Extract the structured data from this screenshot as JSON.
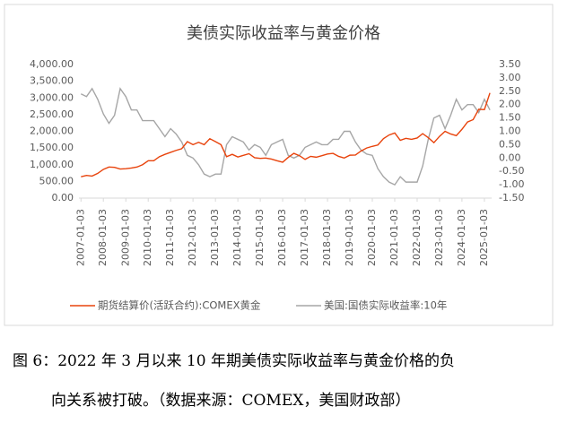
{
  "chart_data": {
    "type": "line",
    "title": "美债实际收益率与黄金价格",
    "x": [
      "2007-01-03",
      "2007-04-03",
      "2007-07-03",
      "2007-10-03",
      "2008-01-03",
      "2008-04-03",
      "2008-07-03",
      "2008-10-03",
      "2009-01-03",
      "2009-04-03",
      "2009-07-03",
      "2009-10-03",
      "2010-01-03",
      "2010-04-03",
      "2010-07-03",
      "2010-10-03",
      "2011-01-03",
      "2011-04-03",
      "2011-07-03",
      "2011-10-03",
      "2012-01-03",
      "2012-04-03",
      "2012-07-03",
      "2012-10-03",
      "2013-01-03",
      "2013-04-03",
      "2013-07-03",
      "2013-10-03",
      "2014-01-03",
      "2014-04-03",
      "2014-07-03",
      "2014-10-03",
      "2015-01-03",
      "2015-04-03",
      "2015-07-03",
      "2015-10-03",
      "2016-01-03",
      "2016-04-03",
      "2016-07-03",
      "2016-10-03",
      "2017-01-03",
      "2017-04-03",
      "2017-07-03",
      "2017-10-03",
      "2018-01-03",
      "2018-04-03",
      "2018-07-03",
      "2018-10-03",
      "2019-01-03",
      "2019-04-03",
      "2019-07-03",
      "2019-10-03",
      "2020-01-03",
      "2020-04-03",
      "2020-07-03",
      "2020-10-03",
      "2021-01-03",
      "2021-04-03",
      "2021-07-03",
      "2021-10-03",
      "2022-01-03",
      "2022-04-03",
      "2022-07-03",
      "2022-10-03",
      "2023-01-03",
      "2023-04-03",
      "2023-07-03",
      "2023-10-03",
      "2024-01-03",
      "2024-04-03",
      "2024-07-03",
      "2024-10-03",
      "2025-01-03",
      "2025-04-03"
    ],
    "series": [
      {
        "name": "期货结算价(活跃合约):COMEX黄金",
        "color": "#e8430c",
        "values": [
          640,
          680,
          660,
          740,
          860,
          930,
          920,
          870,
          880,
          900,
          930,
          1000,
          1120,
          1120,
          1240,
          1310,
          1370,
          1430,
          1480,
          1690,
          1600,
          1670,
          1600,
          1780,
          1690,
          1600,
          1240,
          1310,
          1230,
          1280,
          1330,
          1210,
          1190,
          1200,
          1170,
          1120,
          1075,
          1220,
          1340,
          1270,
          1160,
          1250,
          1225,
          1270,
          1320,
          1340,
          1250,
          1200,
          1285,
          1290,
          1410,
          1500,
          1550,
          1590,
          1780,
          1890,
          1950,
          1730,
          1790,
          1760,
          1800,
          1930,
          1810,
          1660,
          1850,
          2000,
          1920,
          1870,
          2060,
          2280,
          2350,
          2660,
          2650,
          3150
        ]
      },
      {
        "name": "美国:国债实际收益率:10年",
        "color": "#a6a6a6",
        "axis": "y2",
        "values": [
          2.4,
          2.3,
          2.6,
          2.2,
          1.65,
          1.3,
          1.6,
          2.6,
          2.3,
          1.8,
          1.8,
          1.4,
          1.4,
          1.4,
          1.1,
          0.8,
          1.1,
          0.9,
          0.6,
          0.1,
          0.0,
          -0.25,
          -0.6,
          -0.7,
          -0.6,
          -0.6,
          0.5,
          0.8,
          0.7,
          0.6,
          0.3,
          0.5,
          0.4,
          0.1,
          0.5,
          0.6,
          0.7,
          0.1,
          0.0,
          0.1,
          0.4,
          0.5,
          0.6,
          0.5,
          0.5,
          0.7,
          0.7,
          1.0,
          1.0,
          0.6,
          0.3,
          0.15,
          0.1,
          -0.4,
          -0.7,
          -0.9,
          -1.0,
          -0.7,
          -0.9,
          -0.9,
          -0.9,
          -0.3,
          0.7,
          1.5,
          1.6,
          1.1,
          1.6,
          2.2,
          1.8,
          2.0,
          2.0,
          1.7,
          2.2,
          1.8
        ]
      }
    ],
    "xlim": [
      "2006-12-01",
      "2025-05-01"
    ],
    "xticks": [
      "2007-01-03",
      "2008-01-03",
      "2009-01-03",
      "2010-01-03",
      "2011-01-03",
      "2012-01-03",
      "2013-01-03",
      "2014-01-03",
      "2015-01-03",
      "2016-01-03",
      "2017-01-03",
      "2018-01-03",
      "2019-01-03",
      "2020-01-03",
      "2021-01-03",
      "2022-01-03",
      "2023-01-03",
      "2024-01-03",
      "2025-01-03"
    ],
    "ylim": [
      0,
      4000
    ],
    "yticks": [
      {
        "value": 0,
        "label": "0.00"
      },
      {
        "value": 500,
        "label": "500.00"
      },
      {
        "value": 1000,
        "label": "1,000.00"
      },
      {
        "value": 1500,
        "label": "1,500.00"
      },
      {
        "value": 2000,
        "label": "2,000.00"
      },
      {
        "value": 2500,
        "label": "2,500.00"
      },
      {
        "value": 3000,
        "label": "3,000.00"
      },
      {
        "value": 3500,
        "label": "3,500.00"
      },
      {
        "value": 4000,
        "label": "4,000.00"
      }
    ],
    "y2lim": [
      -1.5,
      3.5
    ],
    "y2ticks": [
      {
        "value": -1.5,
        "label": "-1.50"
      },
      {
        "value": -1,
        "label": "-1.00"
      },
      {
        "value": -0.5,
        "label": "-0.50"
      },
      {
        "value": 0,
        "label": "0.00"
      },
      {
        "value": 0.5,
        "label": "0.50"
      },
      {
        "value": 1,
        "label": "1.00"
      },
      {
        "value": 1.5,
        "label": "1.50"
      },
      {
        "value": 2,
        "label": "2.00"
      },
      {
        "value": 2.5,
        "label": "2.50"
      },
      {
        "value": 3,
        "label": "3.00"
      },
      {
        "value": 3.5,
        "label": "3.50"
      }
    ],
    "grid": false,
    "legend": "bottom"
  },
  "caption": [
    "图 6：2022 年 3 月以来 10 年期美债实际收益率与黄金价格的负",
    "向关系被打破。（数据来源：COMEX，美国财政部）"
  ]
}
